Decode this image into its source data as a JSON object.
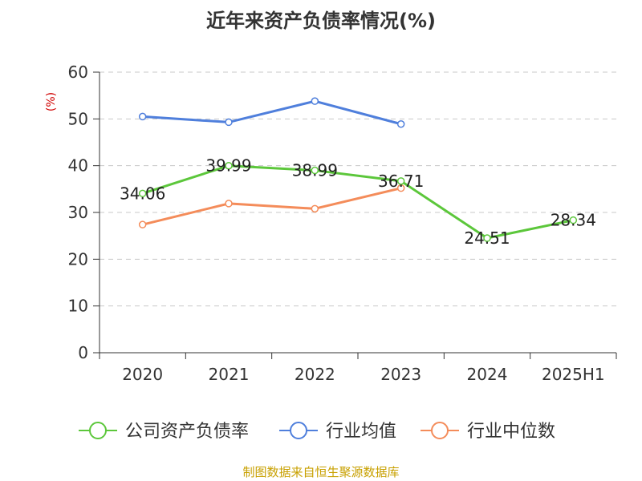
{
  "chart_data": {
    "type": "line",
    "title": "近年来资产负债率情况(%)",
    "ylabel": "(%)",
    "xlabel": "",
    "categories": [
      "2020",
      "2021",
      "2022",
      "2023",
      "2024",
      "2025H1"
    ],
    "ylim": [
      0,
      60
    ],
    "yticks": [
      0,
      10,
      20,
      30,
      40,
      50,
      60
    ],
    "grid": true,
    "legend_position": "bottom",
    "series": [
      {
        "name": "公司资产负债率",
        "color": "#5cc73b",
        "values": [
          34.06,
          39.99,
          38.99,
          36.71,
          24.51,
          28.34
        ],
        "labels": [
          "34.06",
          "39.99",
          "38.99",
          "36.71",
          "24.51",
          "28.34"
        ]
      },
      {
        "name": "行业均值",
        "color": "#4f7fdc",
        "values": [
          50.5,
          49.3,
          53.8,
          48.9,
          null,
          null
        ]
      },
      {
        "name": "行业中位数",
        "color": "#f48c5a",
        "values": [
          27.4,
          31.9,
          30.8,
          35.2,
          null,
          null
        ]
      }
    ]
  },
  "source": "制图数据来自恒生聚源数据库"
}
